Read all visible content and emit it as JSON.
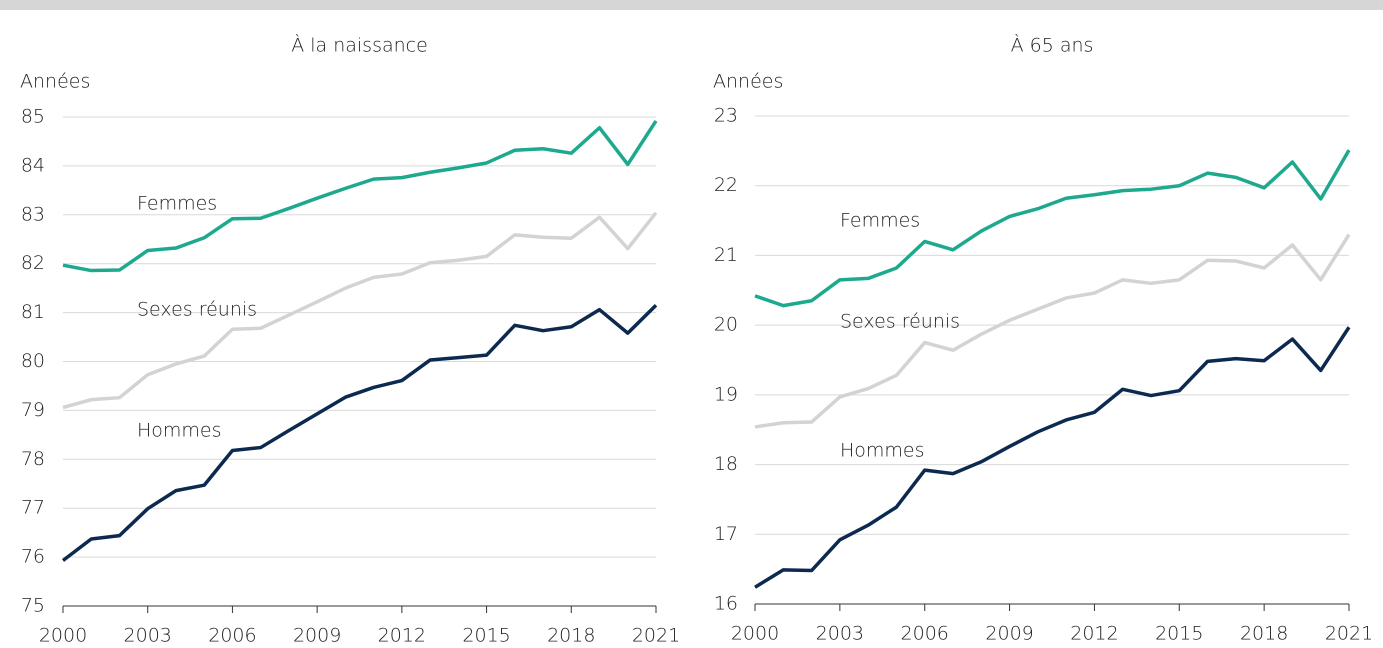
{
  "chart_data": [
    {
      "type": "line",
      "title": "À la naissance",
      "y_label": "Années",
      "x": [
        2000,
        2001,
        2002,
        2003,
        2004,
        2005,
        2006,
        2007,
        2008,
        2009,
        2010,
        2011,
        2012,
        2013,
        2014,
        2015,
        2016,
        2017,
        2018,
        2019,
        2020,
        2021
      ],
      "xlim": [
        2000,
        2021
      ],
      "xticks": [
        2000,
        2003,
        2006,
        2009,
        2012,
        2015,
        2018,
        2021
      ],
      "ylim": [
        75,
        85
      ],
      "yticks": [
        75,
        76,
        77,
        78,
        79,
        80,
        81,
        82,
        83,
        84,
        85
      ],
      "grid": true,
      "series": [
        {
          "name": "Femmes",
          "color": "#1ea98e",
          "values": [
            81.97,
            81.86,
            81.87,
            82.27,
            82.32,
            82.53,
            82.92,
            82.93,
            83.13,
            83.34,
            83.54,
            83.73,
            83.76,
            83.87,
            83.96,
            84.06,
            84.32,
            84.35,
            84.26,
            84.78,
            84.03,
            84.92
          ]
        },
        {
          "name": "Sexes réunis",
          "color": "#d3d3d3",
          "values": [
            79.06,
            79.22,
            79.26,
            79.73,
            79.95,
            80.11,
            80.66,
            80.68,
            80.95,
            81.22,
            81.5,
            81.72,
            81.79,
            82.02,
            82.07,
            82.15,
            82.59,
            82.54,
            82.52,
            82.95,
            82.31,
            83.04
          ]
        },
        {
          "name": "Hommes",
          "color": "#0c2a50",
          "values": [
            75.93,
            76.37,
            76.44,
            76.99,
            77.36,
            77.47,
            78.18,
            78.24,
            78.59,
            78.93,
            79.27,
            79.47,
            79.61,
            80.03,
            80.08,
            80.13,
            80.74,
            80.63,
            80.71,
            81.06,
            80.58,
            81.15
          ]
        }
      ]
    },
    {
      "type": "line",
      "title": "À 65 ans",
      "y_label": "Années",
      "x": [
        2000,
        2001,
        2002,
        2003,
        2004,
        2005,
        2006,
        2007,
        2008,
        2009,
        2010,
        2011,
        2012,
        2013,
        2014,
        2015,
        2016,
        2017,
        2018,
        2019,
        2020,
        2021
      ],
      "xlim": [
        2000,
        2021
      ],
      "xticks": [
        2000,
        2003,
        2006,
        2009,
        2012,
        2015,
        2018,
        2021
      ],
      "ylim": [
        16,
        23
      ],
      "yticks": [
        16,
        17,
        18,
        19,
        20,
        21,
        22,
        23
      ],
      "grid": true,
      "series": [
        {
          "name": "Femmes",
          "color": "#1ea98e",
          "values": [
            20.42,
            20.28,
            20.35,
            20.65,
            20.67,
            20.82,
            21.2,
            21.08,
            21.35,
            21.56,
            21.67,
            21.82,
            21.87,
            21.93,
            21.95,
            22.0,
            22.18,
            22.12,
            21.97,
            22.34,
            21.81,
            22.51
          ]
        },
        {
          "name": "Sexes réunis",
          "color": "#d3d3d3",
          "values": [
            18.54,
            18.6,
            18.61,
            18.97,
            19.09,
            19.28,
            19.75,
            19.64,
            19.87,
            20.07,
            20.23,
            20.39,
            20.46,
            20.65,
            20.6,
            20.65,
            20.93,
            20.92,
            20.82,
            21.15,
            20.65,
            21.3
          ]
        },
        {
          "name": "Hommes",
          "color": "#0c2a50",
          "values": [
            16.24,
            16.49,
            16.48,
            16.92,
            17.13,
            17.39,
            17.92,
            17.87,
            18.04,
            18.26,
            18.47,
            18.64,
            18.75,
            19.08,
            18.99,
            19.06,
            19.48,
            19.52,
            19.49,
            19.8,
            19.35,
            19.97
          ]
        }
      ]
    }
  ]
}
